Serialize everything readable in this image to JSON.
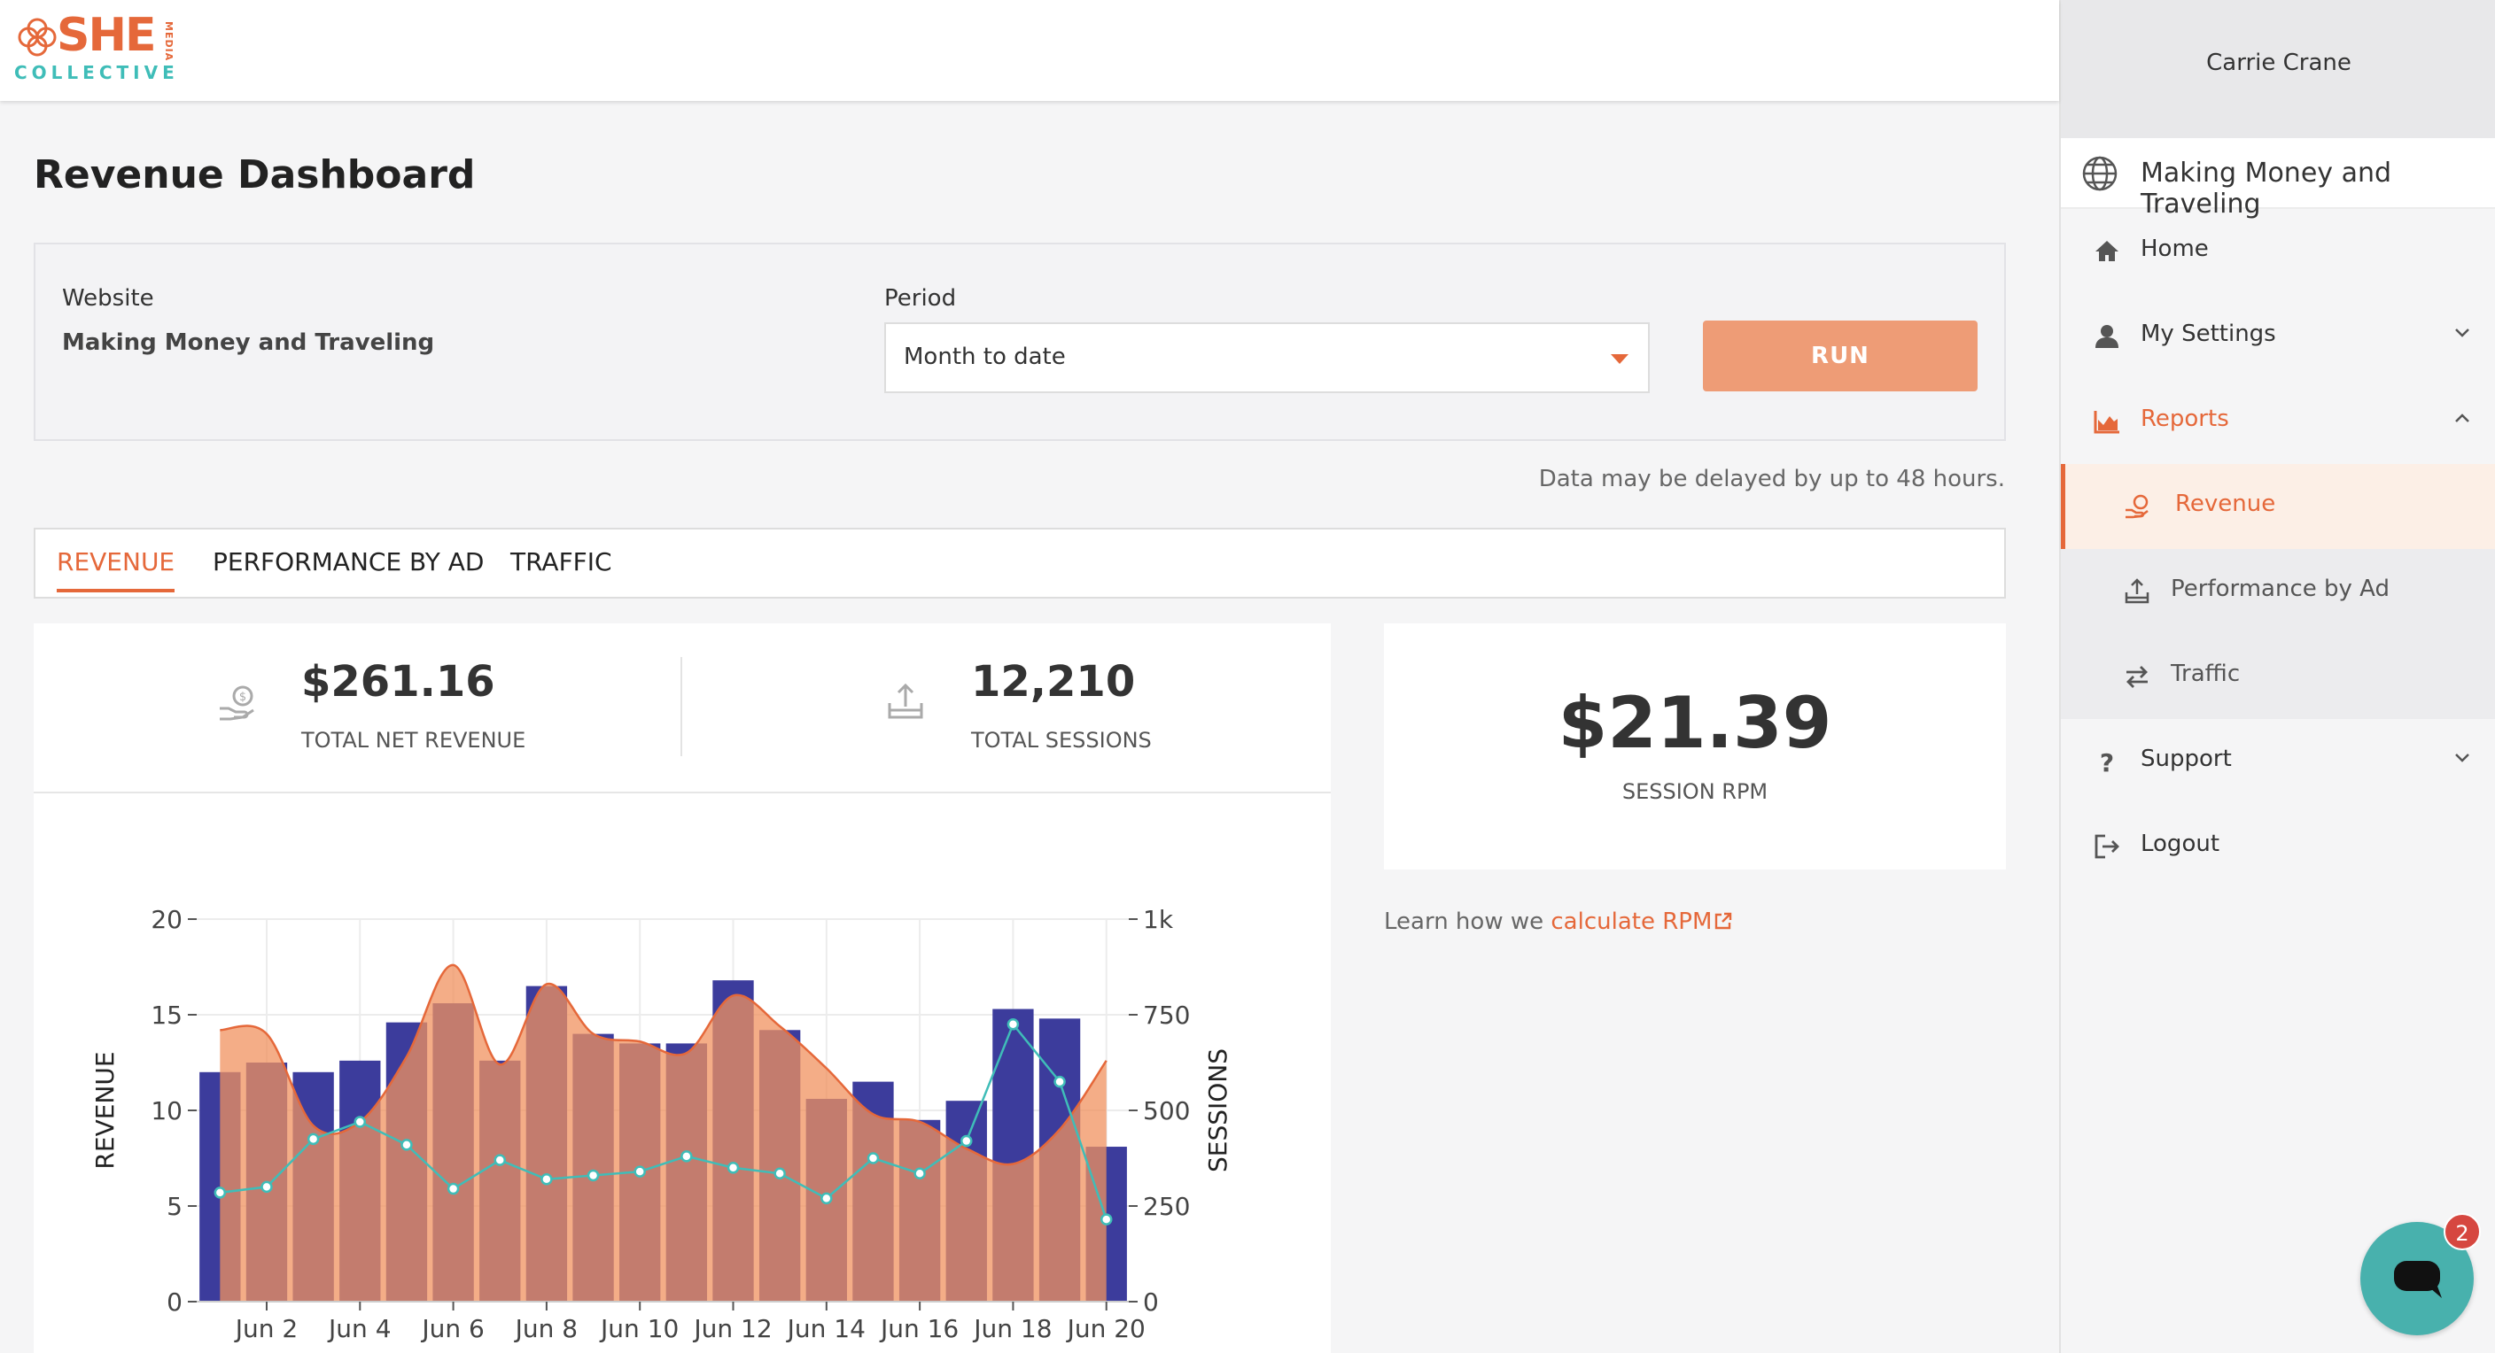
{
  "brand": {
    "logo_main": "SHE",
    "logo_media": "MEDIA",
    "logo_sub": "COLLECTIVE",
    "orange": "#e5683a",
    "teal": "#3fbdb8"
  },
  "page": {
    "title": "Revenue Dashboard"
  },
  "filters": {
    "website_label": "Website",
    "website_value": "Making Money and Traveling",
    "period_label": "Period",
    "period_value": "Month to date",
    "run_label": "RUN",
    "delay_note": "Data may be delayed by up to 48 hours."
  },
  "tabs": [
    {
      "label": "REVENUE",
      "active": true
    },
    {
      "label": "PERFORMANCE BY AD",
      "active": false
    },
    {
      "label": "TRAFFIC",
      "active": false
    }
  ],
  "stats": {
    "revenue": {
      "value": "$261.16",
      "label": "TOTAL NET REVENUE",
      "icon": "revenue-hand-icon"
    },
    "sessions": {
      "value": "12,210",
      "label": "TOTAL SESSIONS",
      "icon": "sessions-tray-icon"
    },
    "rpm": {
      "value": "$21.39",
      "label": "SESSION RPM"
    }
  },
  "learn": {
    "prefix": "Learn how we ",
    "link": "calculate RPM"
  },
  "sidebar": {
    "user": "Carrie Crane",
    "site": "Making Money and Traveling",
    "items": [
      {
        "label": "Home",
        "icon": "home-icon"
      },
      {
        "label": "My Settings",
        "icon": "user-icon"
      },
      {
        "label": "Reports",
        "icon": "area-chart-icon"
      },
      {
        "label": "Revenue",
        "icon": "revenue-hand-icon"
      },
      {
        "label": "Performance by Ad",
        "icon": "tray-icon"
      },
      {
        "label": "Traffic",
        "icon": "arrows-exchange-icon"
      },
      {
        "label": "Support",
        "icon": "question-icon"
      },
      {
        "label": "Logout",
        "icon": "logout-icon"
      }
    ]
  },
  "chat": {
    "badge": "2",
    "icon": "chat-icon"
  },
  "chart_data": {
    "type": "bar",
    "title": "",
    "x_ticks": [
      "Jun 2",
      "Jun 4",
      "Jun 6",
      "Jun 8",
      "Jun 10",
      "Jun 12",
      "Jun 14",
      "Jun 16",
      "Jun 18",
      "Jun 20"
    ],
    "ylabel": "REVENUE",
    "y2label": "SESSIONS",
    "ylim": [
      0,
      20
    ],
    "y2lim": [
      0,
      1000
    ],
    "y_ticks": [
      "0",
      "5",
      "10",
      "15",
      "20"
    ],
    "y2_ticks": [
      "0",
      "250",
      "500",
      "750",
      "1k"
    ],
    "grid": true,
    "legend_position": "bottom",
    "days": [
      1,
      2,
      3,
      4,
      5,
      6,
      7,
      8,
      9,
      10,
      11,
      12,
      13,
      14,
      15,
      16,
      17,
      18,
      19,
      20
    ],
    "series": [
      {
        "name": "REVENUE",
        "type": "bar",
        "axis": "left",
        "color": "#3c3c9c",
        "values": [
          12.0,
          12.5,
          12.0,
          12.6,
          14.6,
          15.6,
          12.6,
          16.5,
          14.0,
          13.5,
          13.5,
          16.8,
          14.2,
          10.6,
          11.5,
          9.5,
          10.5,
          15.3,
          14.8,
          8.1
        ]
      },
      {
        "name": "SESSIONS",
        "type": "area",
        "axis": "right",
        "color": "#e5683a",
        "values": [
          710,
          700,
          460,
          470,
          640,
          880,
          620,
          830,
          700,
          680,
          650,
          800,
          720,
          610,
          490,
          470,
          400,
          360,
          450,
          630
        ]
      },
      {
        "name": "RPM",
        "type": "line",
        "axis": "left",
        "color": "#3fbdb8",
        "values": [
          5.7,
          6.0,
          8.5,
          9.4,
          8.2,
          5.9,
          7.4,
          6.4,
          6.6,
          6.8,
          7.6,
          7.0,
          6.7,
          5.4,
          7.5,
          6.7,
          8.4,
          14.5,
          11.5,
          4.3
        ]
      }
    ]
  }
}
